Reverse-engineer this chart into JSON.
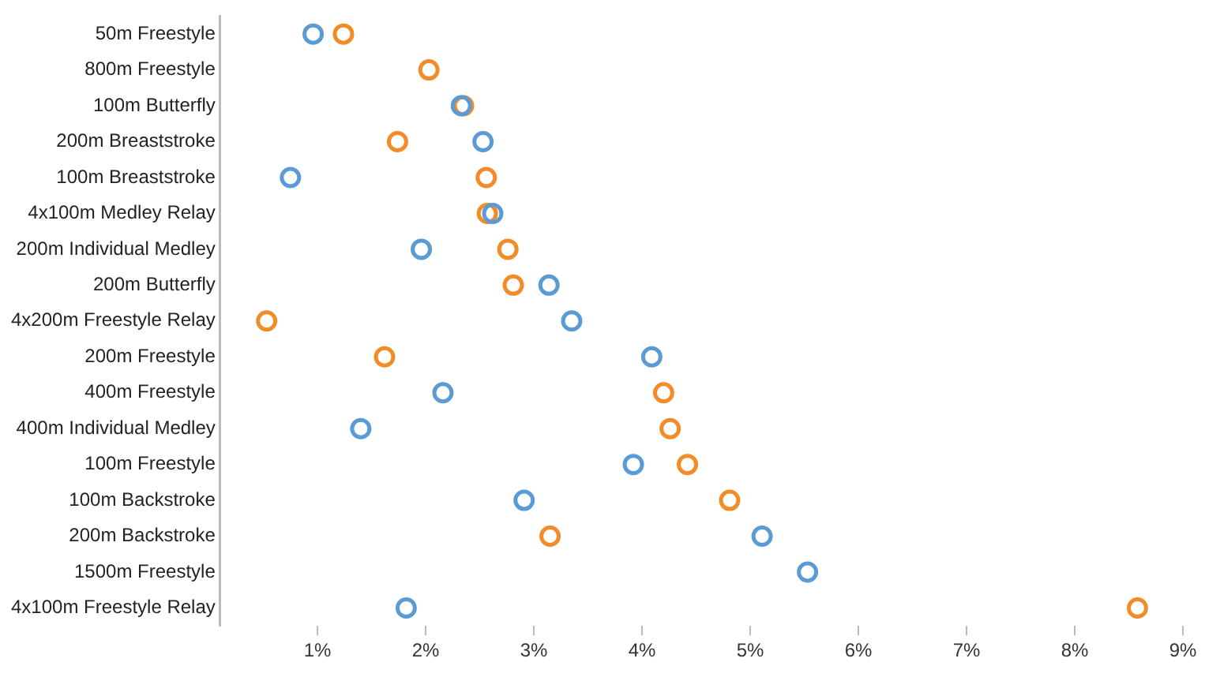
{
  "chart_data": {
    "type": "scatter",
    "categories": [
      "50m Freestyle",
      "800m Freestyle",
      "100m Butterfly",
      "200m Breaststroke",
      "100m Breaststroke",
      "4x100m Medley Relay",
      "200m Individual Medley",
      "200m Butterfly",
      "4x200m Freestyle Relay",
      "200m Freestyle",
      "400m Freestyle",
      "400m Individual Medley",
      "100m Freestyle",
      "100m Backstroke",
      "200m Backstroke",
      "1500m Freestyle",
      "4x100m Freestyle Relay"
    ],
    "series": [
      {
        "color": "#5b9bd5",
        "values": [
          0.96,
          null,
          2.33,
          2.53,
          0.75,
          2.62,
          1.96,
          3.14,
          3.35,
          4.09,
          2.16,
          1.4,
          3.92,
          2.91,
          5.11,
          5.53,
          1.82
        ]
      },
      {
        "color": "#f28c28",
        "values": [
          1.24,
          2.03,
          2.35,
          1.74,
          2.56,
          2.57,
          2.76,
          2.81,
          0.53,
          1.62,
          4.2,
          4.26,
          4.42,
          4.81,
          3.15,
          null,
          8.58
        ]
      }
    ],
    "xlim": [
      0.1,
      9
    ],
    "xticks": [
      {
        "value": 1,
        "label": "1%"
      },
      {
        "value": 2,
        "label": "2%"
      },
      {
        "value": 3,
        "label": "3%"
      },
      {
        "value": 4,
        "label": "4%"
      },
      {
        "value": 5,
        "label": "5%"
      },
      {
        "value": 6,
        "label": "6%"
      },
      {
        "value": 7,
        "label": "7%"
      },
      {
        "value": 8,
        "label": "8%"
      },
      {
        "value": 9,
        "label": "9%"
      }
    ],
    "orientation": "horizontal",
    "marker": "circle",
    "grid": false,
    "legend": false
  }
}
